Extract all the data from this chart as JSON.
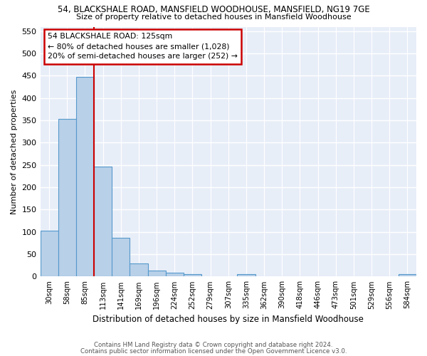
{
  "title": "54, BLACKSHALE ROAD, MANSFIELD WOODHOUSE, MANSFIELD, NG19 7GE",
  "subtitle": "Size of property relative to detached houses in Mansfield Woodhouse",
  "xlabel": "Distribution of detached houses by size in Mansfield Woodhouse",
  "ylabel": "Number of detached properties",
  "footnote1": "Contains HM Land Registry data © Crown copyright and database right 2024.",
  "footnote2": "Contains public sector information licensed under the Open Government Licence v3.0.",
  "categories": [
    "30sqm",
    "58sqm",
    "85sqm",
    "113sqm",
    "141sqm",
    "169sqm",
    "196sqm",
    "224sqm",
    "252sqm",
    "279sqm",
    "307sqm",
    "335sqm",
    "362sqm",
    "390sqm",
    "418sqm",
    "446sqm",
    "473sqm",
    "501sqm",
    "529sqm",
    "556sqm",
    "584sqm"
  ],
  "values": [
    103,
    353,
    447,
    246,
    87,
    30,
    14,
    9,
    5,
    0,
    0,
    5,
    0,
    0,
    0,
    0,
    0,
    0,
    0,
    0,
    5
  ],
  "bar_color": "#b8d0e8",
  "bar_edge_color": "#5599cc",
  "background_color": "#e8eef8",
  "grid_color": "#ffffff",
  "annotation_line1": "54 BLACKSHALE ROAD: 125sqm",
  "annotation_line2": "← 80% of detached houses are smaller (1,028)",
  "annotation_line3": "20% of semi-detached houses are larger (252) →",
  "vline_color": "#cc0000",
  "annotation_box_color": "#cc0000",
  "ylim": [
    0,
    560
  ],
  "yticks": [
    0,
    50,
    100,
    150,
    200,
    250,
    300,
    350,
    400,
    450,
    500,
    550
  ],
  "vline_position": 2.5
}
